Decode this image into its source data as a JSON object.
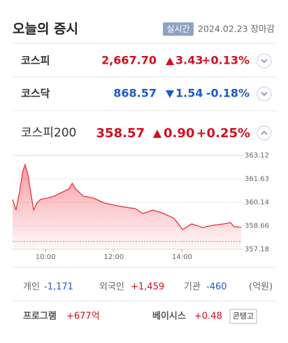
{
  "header": {
    "title": "오늘의 증시",
    "badge": "실시간",
    "date": "2024.02.23 장마감"
  },
  "indices": [
    {
      "name": "코스피",
      "value": "2,667.70",
      "change": "3.43",
      "percent": "+0.13%"
    },
    {
      "name": "코스닥",
      "value": "868.57",
      "change": "1.54",
      "percent": "-0.18%"
    },
    {
      "name": "코스피200",
      "value": "358.57",
      "change": "0.90",
      "percent": "+0.25%"
    }
  ],
  "chart_data": {
    "type": "line",
    "x": [
      542,
      548,
      554,
      560,
      564,
      569,
      574,
      579,
      585,
      591,
      604,
      616,
      628,
      641,
      647,
      653,
      666,
      684,
      703,
      721,
      740,
      758,
      771,
      789,
      808,
      826,
      841,
      857,
      876,
      894,
      913,
      925,
      932,
      944
    ],
    "values": [
      360.33,
      359.66,
      360.77,
      362.1,
      362.54,
      361.88,
      360.77,
      359.66,
      360.11,
      360.33,
      360.42,
      360.55,
      360.77,
      360.99,
      361.35,
      360.99,
      360.55,
      360.42,
      360.11,
      359.97,
      359.84,
      359.75,
      359.44,
      359.66,
      359.44,
      359.13,
      358.42,
      358.78,
      358.55,
      358.69,
      358.78,
      358.86,
      358.6,
      358.57
    ],
    "color": "#e8323c",
    "xlim": [
      542,
      944
    ],
    "xticks": [
      {
        "value": 600,
        "label": "10:00"
      },
      {
        "value": 720,
        "label": "12:00"
      },
      {
        "value": 840,
        "label": "14:00"
      }
    ],
    "ylim": [
      357.18,
      363.12
    ],
    "yticks": [
      363.12,
      361.63,
      360.14,
      358.66,
      357.18
    ],
    "prev_close": 357.67
  },
  "investors": {
    "individual": {
      "label": "개인",
      "value": "-1,171"
    },
    "foreign": {
      "label": "외국인",
      "value": "+1,459"
    },
    "institution": {
      "label": "기관",
      "value": "-460"
    },
    "unit": "(억원)"
  },
  "program": {
    "label": "프로그램",
    "value": "+677억",
    "basis_label": "베이시스",
    "basis_value": "+0.48",
    "status": "콘탱고"
  }
}
